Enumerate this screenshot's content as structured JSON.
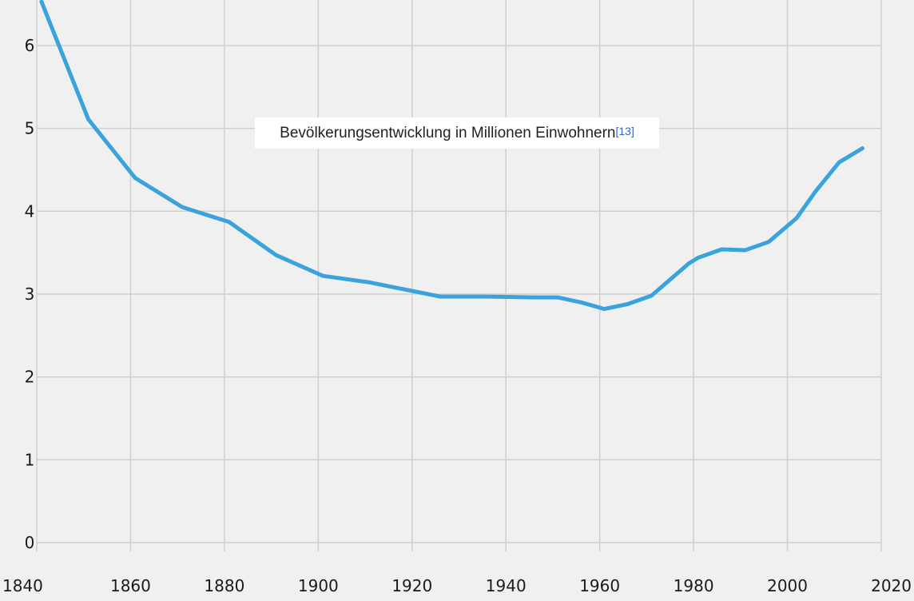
{
  "chart_data": {
    "type": "line",
    "title": "Bevölkerungsentwicklung in Millionen Einwohnern",
    "title_reference": "[13]",
    "xlabel": "",
    "ylabel": "",
    "xlim": [
      1840,
      2020
    ],
    "ylim": [
      -0.3,
      6.55
    ],
    "x_ticks": [
      1840,
      1860,
      1880,
      1900,
      1920,
      1940,
      1960,
      1980,
      2000,
      2020
    ],
    "y_ticks": [
      0,
      1,
      2,
      3,
      4,
      5,
      6
    ],
    "grid": true,
    "series": [
      {
        "color": "#3ba3dc",
        "x": [
          1841,
          1851,
          1861,
          1871,
          1881,
          1891,
          1901,
          1911,
          1926,
          1936,
          1946,
          1951,
          1956,
          1961,
          1966,
          1971,
          1979,
          1981,
          1986,
          1991,
          1996,
          2002,
          2006,
          2011,
          2016
        ],
        "y": [
          6.53,
          5.11,
          4.4,
          4.05,
          3.87,
          3.47,
          3.22,
          3.14,
          2.97,
          2.97,
          2.96,
          2.96,
          2.9,
          2.82,
          2.88,
          2.98,
          3.37,
          3.44,
          3.54,
          3.53,
          3.63,
          3.92,
          4.24,
          4.59,
          4.76
        ]
      }
    ]
  }
}
